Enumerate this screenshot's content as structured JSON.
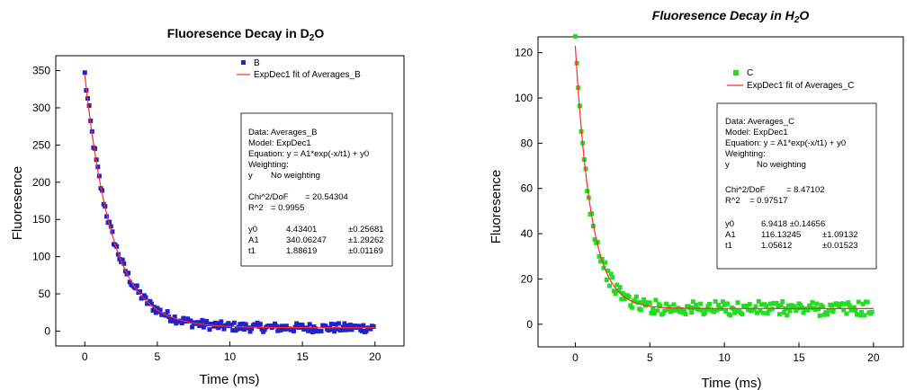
{
  "chart_data": [
    {
      "type": "scatter",
      "title_main": "Fluoresence Decay in D",
      "title_sub": "2",
      "title_end": "O",
      "xlabel": "Time (ms)",
      "ylabel": "Fluoresence",
      "xlim": [
        -2,
        22
      ],
      "ylim": [
        -20,
        370
      ],
      "xticks": [
        0,
        5,
        10,
        15,
        20
      ],
      "yticks": [
        0,
        50,
        100,
        150,
        200,
        250,
        300,
        350
      ],
      "color": "#2222cc",
      "fit_color": "#ff2a2a",
      "legend": {
        "data_label": "B",
        "fit_label": "ExpDec1 fit of Averages_B"
      },
      "fit": {
        "y0": 4.43401,
        "A1": 340.06247,
        "t1": 1.88619
      },
      "noise": 6,
      "info": {
        "lines": [
          "Data: Averages_B",
          "Model: ExpDec1",
          "Equation: y = A1*exp(-x/t1) + y0",
          "Weighting:"
        ],
        "weighting": [
          "y",
          "No weighting"
        ],
        "chi": [
          "Chi^2/DoF",
          "= 20.54304"
        ],
        "r2": [
          "R^2",
          "= 0.9955"
        ],
        "params": [
          [
            "y0",
            "4.43401",
            "±0.25681"
          ],
          [
            "A1",
            "340.06247",
            "±1.29262"
          ],
          [
            "t1",
            "1.88619",
            "±0.01169"
          ]
        ]
      }
    },
    {
      "type": "scatter",
      "title_main": "Fluoresence Decay in H",
      "title_sub": "2",
      "title_end": "O",
      "xlabel": "Time (ms)",
      "ylabel": "Fluoresence",
      "xlim": [
        -2.5,
        22
      ],
      "ylim": [
        -10,
        127
      ],
      "xticks": [
        0,
        5,
        10,
        15,
        20
      ],
      "yticks": [
        0,
        20,
        40,
        60,
        80,
        100,
        120
      ],
      "color": "#22dd22",
      "fit_color": "#ff2a2a",
      "legend": {
        "data_label": "C",
        "fit_label": "ExpDec1 fit of Averages_C"
      },
      "fit": {
        "y0": 6.9418,
        "A1": 116.13245,
        "t1": 1.05612
      },
      "noise": 3.2,
      "info": {
        "lines": [
          "Data: Averages_C",
          "Model: ExpDec1",
          "Equation: y = A1*exp(-x/t1) + y0",
          "Weighting:"
        ],
        "weighting": [
          "y",
          "No weighting"
        ],
        "chi": [
          "Chi^2/DoF",
          "= 8.47102"
        ],
        "r2": [
          "R^2",
          "= 0.97517"
        ],
        "params": [
          [
            "y0",
            "6.9418 ±0.14656",
            ""
          ],
          [
            "A1",
            "116.13245",
            "±1.09132"
          ],
          [
            "t1",
            "1.05612",
            "±0.01523"
          ]
        ]
      }
    }
  ]
}
